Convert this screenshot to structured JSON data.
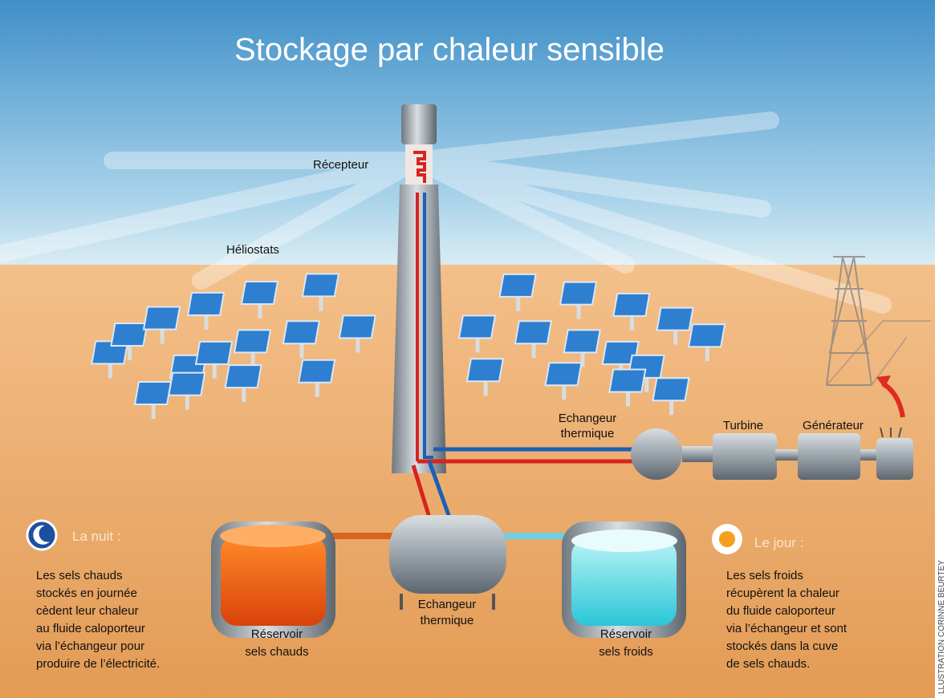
{
  "title": "Stockage par chaleur sensible",
  "labels": {
    "receiver": "Récepteur",
    "heliostats": "Héliostats",
    "exchanger_top": [
      "Echangeur",
      "thermique"
    ],
    "turbine": "Turbine",
    "generator": "Générateur",
    "exchanger_bottom": [
      "Echangeur",
      "thermique"
    ],
    "hot_tank": [
      "Réservoir",
      "sels chauds"
    ],
    "cold_tank": [
      "Réservoir",
      "sels froids"
    ]
  },
  "night": {
    "heading": "La nuit :",
    "lines": [
      "Les sels chauds",
      "stockés en journée",
      "cèdent leur chaleur",
      "au fluide caloporteur",
      "via l’échangeur pour",
      "produire de l’électricité."
    ]
  },
  "day": {
    "heading": "Le jour :",
    "lines": [
      "Les sels froids",
      "récupèrent la chaleur",
      "du fluide caloporteur",
      "via l’échangeur et sont",
      "stockés dans la cuve",
      "de sels chauds."
    ]
  },
  "credit": "LLUSTRATION CORINNE BEURTEY"
}
